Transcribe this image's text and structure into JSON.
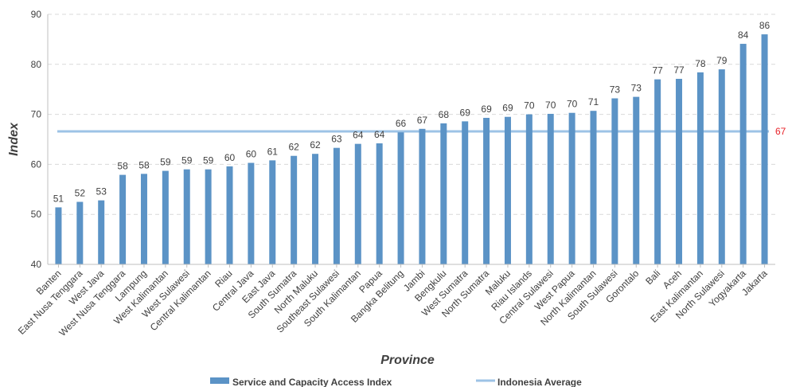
{
  "chart_data": {
    "type": "bar",
    "categories": [
      "Banten",
      "East Nusa Tenggara",
      "West Java",
      "West Nusa Tenggara",
      "Lampung",
      "West Kalimantan",
      "West Sulawesi",
      "Central Kalimantan",
      "Riau",
      "Central Java",
      "East Java",
      "South Sumatra",
      "North Maluku",
      "Southeast Sulawesi",
      "South Kalimantan",
      "Papua",
      "Bangka Belitung",
      "Jambi",
      "Bengkulu",
      "West Sumatra",
      "North Sumatra",
      "Maluku",
      "Riau Islands",
      "Central Sulawesi",
      "West Papua",
      "North Kalimantan",
      "South Sulawesi",
      "Gorontalo",
      "Bali",
      "Aceh",
      "East Kalimantan",
      "North Sulawesi",
      "Yogyakarta",
      "Jakarta"
    ],
    "series": [
      {
        "name": "Service and Capacity Access Index",
        "values": [
          51.4,
          52.5,
          52.8,
          57.9,
          58.1,
          58.7,
          59.0,
          59.0,
          59.6,
          60.3,
          60.8,
          61.7,
          62.1,
          63.3,
          64.1,
          64.2,
          66.4,
          67.1,
          68.2,
          68.6,
          69.3,
          69.5,
          70.0,
          70.1,
          70.3,
          70.7,
          73.2,
          73.5,
          77.0,
          77.1,
          78.4,
          79.0,
          84.1,
          86.0
        ],
        "labels": [
          "51",
          "52",
          "53",
          "58",
          "58",
          "59",
          "59",
          "59",
          "60",
          "60",
          "61",
          "62",
          "62",
          "63",
          "64",
          "64",
          "66",
          "67",
          "68",
          "69",
          "69",
          "69",
          "70",
          "70",
          "70",
          "71",
          "73",
          "73",
          "77",
          "77",
          "78",
          "79",
          "84",
          "86"
        ],
        "color": "#5b93c6"
      }
    ],
    "reference_line": {
      "name": "Indonesia Average",
      "value": 66.6,
      "label": "67",
      "color": "#9dc3e6",
      "label_color": "#e8232a"
    },
    "xlabel": "Province",
    "ylabel": "Index",
    "ylim": [
      40,
      90
    ],
    "yticks": [
      "40",
      "50",
      "60",
      "70",
      "80",
      "90"
    ],
    "grid": true,
    "legend_position": "bottom"
  }
}
